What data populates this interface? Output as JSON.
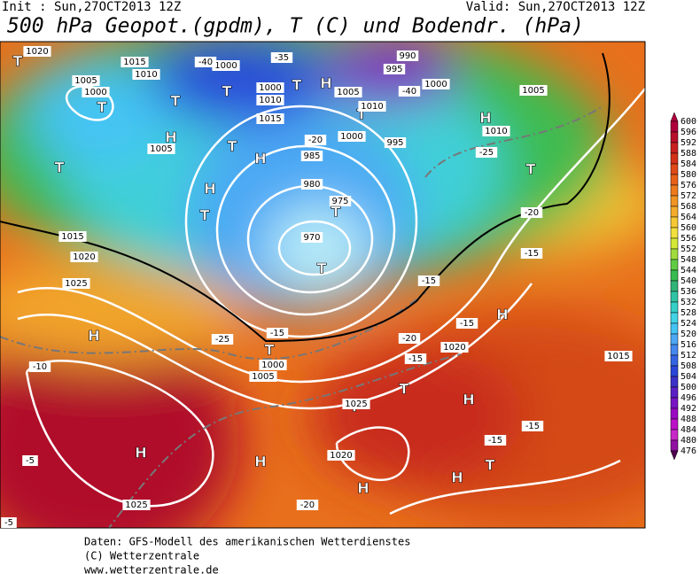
{
  "header": {
    "init": "Init : Sun,27OCT2013 12Z",
    "valid": "Valid: Sun,27OCT2013 12Z",
    "title": "500 hPa Geopot.(gpdm), T (C) und Bodendr. (hPa)"
  },
  "colorbar": {
    "values": [
      600,
      596,
      592,
      588,
      584,
      580,
      576,
      572,
      568,
      564,
      560,
      556,
      552,
      548,
      544,
      540,
      536,
      532,
      528,
      524,
      520,
      516,
      512,
      508,
      504,
      500,
      496,
      492,
      488,
      484,
      480,
      476
    ],
    "colors": [
      "#b0003c",
      "#b8102a",
      "#c82020",
      "#d43018",
      "#e04818",
      "#e86018",
      "#ee7a1c",
      "#f29424",
      "#f4ac2c",
      "#f6c834",
      "#f2e03c",
      "#d4e838",
      "#a0dc3c",
      "#60cc44",
      "#38bc50",
      "#30b478",
      "#30c4a4",
      "#34d0c8",
      "#40d4e4",
      "#44c4f4",
      "#4ca8f4",
      "#4488f0",
      "#3464e4",
      "#2a46d8",
      "#3c30c8",
      "#5a20c4",
      "#7814c4",
      "#9a08c4",
      "#bc10c8",
      "#c828c8",
      "#9010a0",
      "#500050"
    ]
  },
  "labels": [
    "T",
    "1020",
    "1015",
    "1010",
    "1000",
    "1005",
    "T",
    "T",
    "T",
    "1000",
    "H",
    "T",
    "-40",
    "1000",
    "-35",
    "1010",
    "1015",
    "T",
    "H",
    "1005",
    "T",
    "H",
    "990",
    "995",
    "-40",
    "1000",
    "1005",
    "1010",
    "H",
    "-25",
    "H",
    "T",
    "1000",
    "995",
    "985",
    "980",
    "975",
    "970",
    "T",
    "T",
    "1005",
    "1010",
    "T",
    "T",
    "1015",
    "1020",
    "1025",
    "H",
    "-10",
    "H",
    "H",
    "T",
    "1020",
    "-15",
    "H",
    "T",
    "T",
    "H",
    "-15",
    "-15",
    "H",
    "T",
    "-20",
    "1020",
    "1025",
    "-5",
    "-5",
    "-20",
    "-25",
    "-15",
    "-20",
    "-15",
    "-20",
    "1015",
    "1000",
    "1005",
    "H",
    "1025",
    "-15",
    "-15"
  ],
  "footer": [
    "Daten: GFS-Modell des amerikanischen Wetterdienstes",
    "(C) Wetterzentrale",
    "www.wetterzentrale.de"
  ]
}
